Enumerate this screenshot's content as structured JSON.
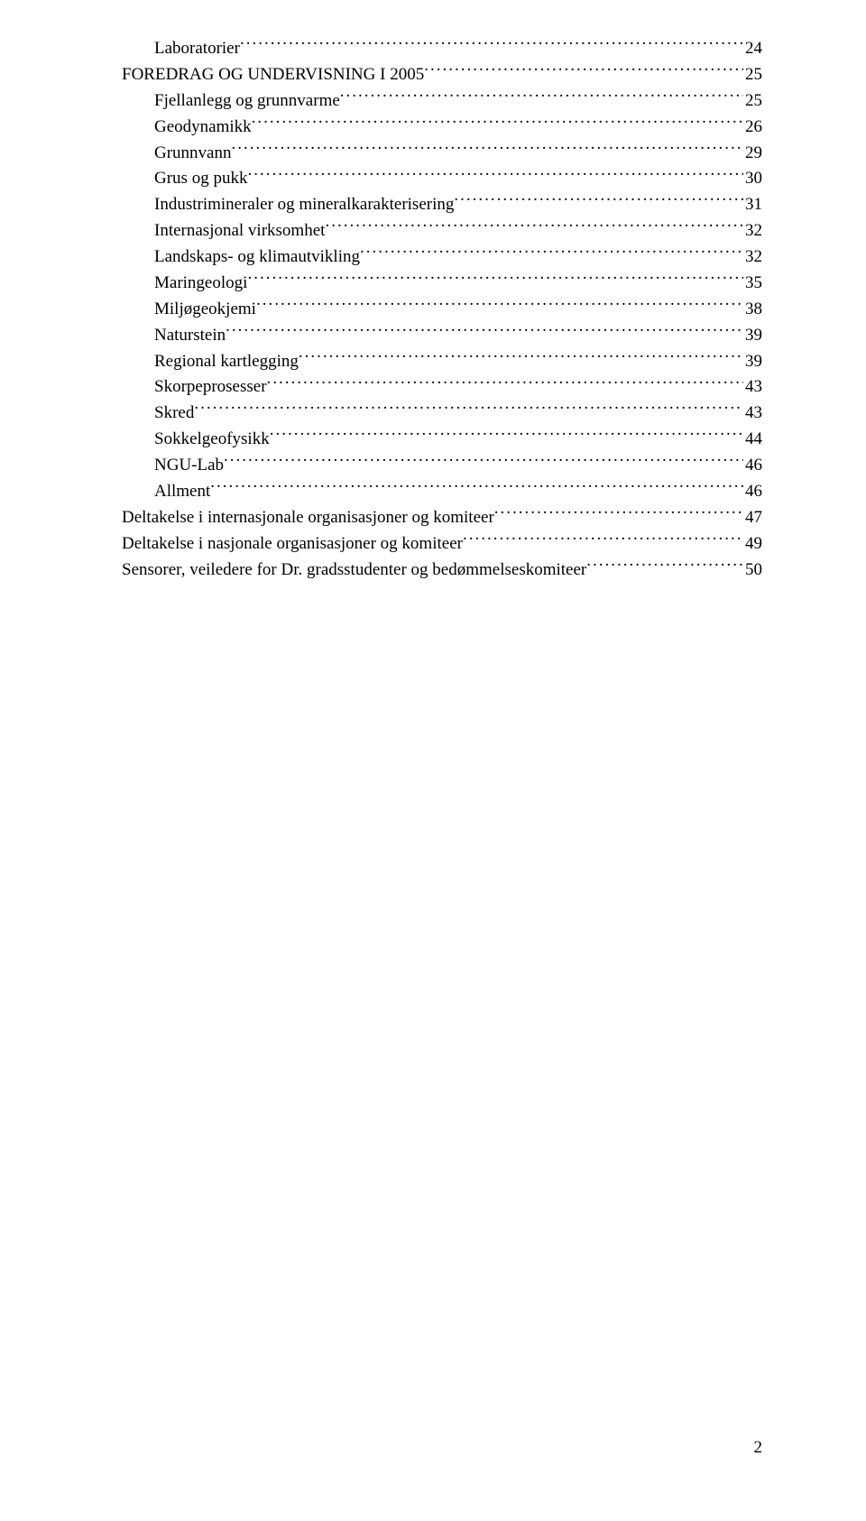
{
  "toc": [
    {
      "label": "Laboratorier",
      "page": "24",
      "indent": true
    },
    {
      "label": "FOREDRAG OG UNDERVISNING I 2005",
      "page": "25",
      "indent": false
    },
    {
      "label": "Fjellanlegg og grunnvarme",
      "page": "25",
      "indent": true
    },
    {
      "label": "Geodynamikk",
      "page": "26",
      "indent": true
    },
    {
      "label": "Grunnvann",
      "page": "29",
      "indent": true
    },
    {
      "label": "Grus og pukk",
      "page": "30",
      "indent": true
    },
    {
      "label": "Industrimineraler og mineralkarakterisering",
      "page": "31",
      "indent": true
    },
    {
      "label": "Internasjonal virksomhet",
      "page": "32",
      "indent": true
    },
    {
      "label": "Landskaps- og klimautvikling",
      "page": "32",
      "indent": true
    },
    {
      "label": "Maringeologi",
      "page": "35",
      "indent": true
    },
    {
      "label": "Miljøgeokjemi",
      "page": "38",
      "indent": true
    },
    {
      "label": "Naturstein",
      "page": "39",
      "indent": true
    },
    {
      "label": "Regional kartlegging",
      "page": "39",
      "indent": true
    },
    {
      "label": "Skorpeprosesser",
      "page": "43",
      "indent": true
    },
    {
      "label": "Skred",
      "page": "43",
      "indent": true
    },
    {
      "label": "Sokkelgeofysikk",
      "page": "44",
      "indent": true
    },
    {
      "label": "NGU-Lab",
      "page": "46",
      "indent": true
    },
    {
      "label": "Allment",
      "page": "46",
      "indent": true
    },
    {
      "label": "Deltakelse i internasjonale organisasjoner og komiteer",
      "page": "47",
      "indent": false
    },
    {
      "label": "Deltakelse i nasjonale organisasjoner og komiteer",
      "page": "49",
      "indent": false
    },
    {
      "label": "Sensorer, veiledere for Dr. gradsstudenter og bedømmelseskomiteer",
      "page": "50",
      "indent": false
    }
  ],
  "pageNumber": "2",
  "style": {
    "fontFamily": "Times New Roman",
    "fontSizePt": 14,
    "textColor": "#000000",
    "backgroundColor": "#ffffff",
    "indentPx": 36
  }
}
